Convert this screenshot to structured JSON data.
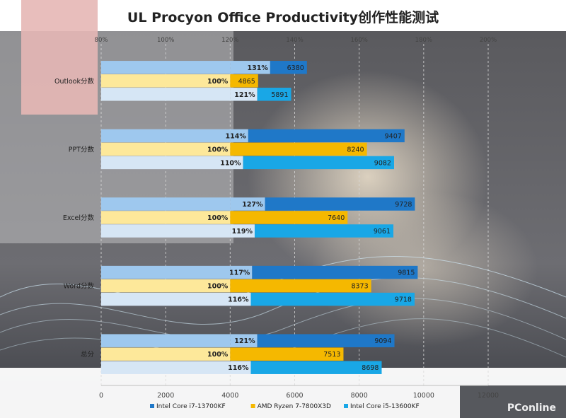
{
  "chart_data": {
    "type": "bar",
    "title": "UL Procyon Office Productivity创作性能测试",
    "categories": [
      "Outlook分数",
      "PPT分数",
      "Excel分数",
      "Word分数",
      "总分"
    ],
    "series": [
      {
        "name": "Intel Core i7-13700KF",
        "color": "#1f78c8",
        "label_bg": "#9ec8ee",
        "values": [
          6380,
          9407,
          9728,
          9815,
          9094
        ],
        "percents": [
          131,
          114,
          127,
          117,
          121
        ]
      },
      {
        "name": "AMD Ryzen 7-7800X3D",
        "color": "#f5b800",
        "label_bg": "#fde89a",
        "values": [
          4865,
          8240,
          7640,
          8373,
          7513
        ],
        "percents": [
          100,
          100,
          100,
          100,
          100
        ]
      },
      {
        "name": "Intel Core i5-13600KF",
        "color": "#19a7e6",
        "label_bg": "#d6e6f5",
        "values": [
          5891,
          9082,
          9061,
          9718,
          8698
        ],
        "percents": [
          121,
          110,
          119,
          116,
          116
        ]
      }
    ],
    "x_bottom": {
      "min": 0,
      "max": 12000,
      "ticks": [
        0,
        2000,
        4000,
        6000,
        8000,
        10000,
        12000
      ]
    },
    "x_top": {
      "min": 80,
      "max": 200,
      "ticks": [
        "80%",
        "100%",
        "120%",
        "140%",
        "160%",
        "180%",
        "200%"
      ]
    },
    "percent_base_value": 4000,
    "legend_position": "bottom",
    "grid": true
  },
  "watermark": "PConline"
}
